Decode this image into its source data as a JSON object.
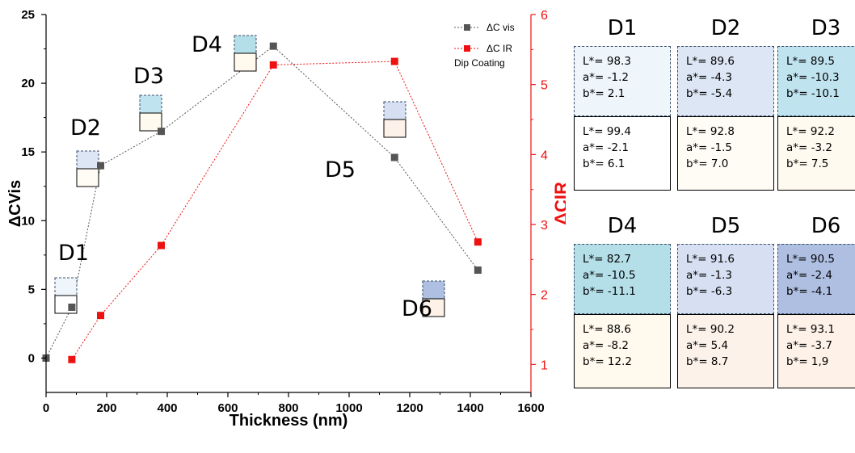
{
  "chart_data": {
    "type": "scatter",
    "xlabel": "Thickness (nm)",
    "ylabel_left": "ΔCVis",
    "ylabel_right": "ΔCIR",
    "xlim": [
      0,
      1600
    ],
    "ylim_left": [
      -2.5,
      25
    ],
    "ylim_right": [
      0.6,
      6
    ],
    "x_ticks": [
      "0",
      "200",
      "400",
      "600",
      "800",
      "1000",
      "1200",
      "1400",
      "1600"
    ],
    "y_left_ticks": [
      "0",
      "5",
      "10",
      "15",
      "20",
      "25"
    ],
    "y_right_ticks": [
      "1",
      "2",
      "3",
      "4",
      "5",
      "6"
    ],
    "series": [
      {
        "name": "ΔC vis",
        "axis": "left",
        "color": "#555555",
        "x": [
          0,
          85,
          180,
          380,
          750,
          1150,
          1425
        ],
        "y": [
          0,
          3.7,
          14,
          16.5,
          22.7,
          14.6,
          6.4
        ]
      },
      {
        "name": "ΔC IR",
        "axis": "right",
        "color": "#ee1111",
        "x": [
          85,
          180,
          380,
          750,
          1150,
          1425
        ],
        "y": [
          1.07,
          1.7,
          2.7,
          5.28,
          5.33,
          2.75
        ]
      }
    ],
    "legend_extra": "Dip Coating",
    "legend_position": "top-right",
    "sample_labels": [
      "D1",
      "D2",
      "D3",
      "D4",
      "D5",
      "D6"
    ]
  },
  "panels": [
    {
      "label": "D1",
      "top": {
        "L": "L*= 98.3",
        "a": "a*= -1.2",
        "b": "b*= 2.1",
        "color": "#eef5fb"
      },
      "bottom": {
        "L": "L*= 99.4",
        "a": "a*= -2.1",
        "b": "b*= 6.1",
        "color": "#ffffff"
      }
    },
    {
      "label": "D2",
      "top": {
        "L": "L*= 89.6",
        "a": "a*= -4.3",
        "b": "b*= -5.4",
        "color": "#dde6f4"
      },
      "bottom": {
        "L": "L*= 92.8",
        "a": "a*= -1.5",
        "b": "b*= 7.0",
        "color": "#fffcf5"
      }
    },
    {
      "label": "D3",
      "top": {
        "L": "L*= 89.5",
        "a": "a*= -10.3",
        "b": "b*= -10.1",
        "color": "#bfe3ef"
      },
      "bottom": {
        "L": "L*= 92.2",
        "a": "a*= -3.2",
        "b": "b*= 7.5",
        "color": "#fffaf0"
      }
    },
    {
      "label": "D4",
      "top": {
        "L": "L*= 82.7",
        "a": "a*= -10.5",
        "b": "b*= -11.1",
        "color": "#b4dfe9"
      },
      "bottom": {
        "L": "L*= 88.6",
        "a": "a*= -8.2",
        "b": "b*= 12.2",
        "color": "#fffaed"
      }
    },
    {
      "label": "D5",
      "top": {
        "L": "L*= 91.6",
        "a": "a*= -1.3",
        "b": "b*= -6.3",
        "color": "#d6e0f2"
      },
      "bottom": {
        "L": "L*= 90.2",
        "a": "a*= 5.4",
        "b": "b*= 8.7",
        "color": "#fdf2ea"
      }
    },
    {
      "label": "D6",
      "top": {
        "L": "L*= 90.5",
        "a": "a*= -2.4",
        "b": "b*= -4.1",
        "color": "#aebfe2"
      },
      "bottom": {
        "L": "L*= 93.1",
        "a": "a*= -3.7",
        "b": "b*= 1,9",
        "color": "#fdf1e8"
      }
    }
  ],
  "colors": {
    "vis_series": "#555555",
    "ir_series": "#ee1111",
    "axis": "#000000",
    "right_axis": "#ee1111"
  }
}
